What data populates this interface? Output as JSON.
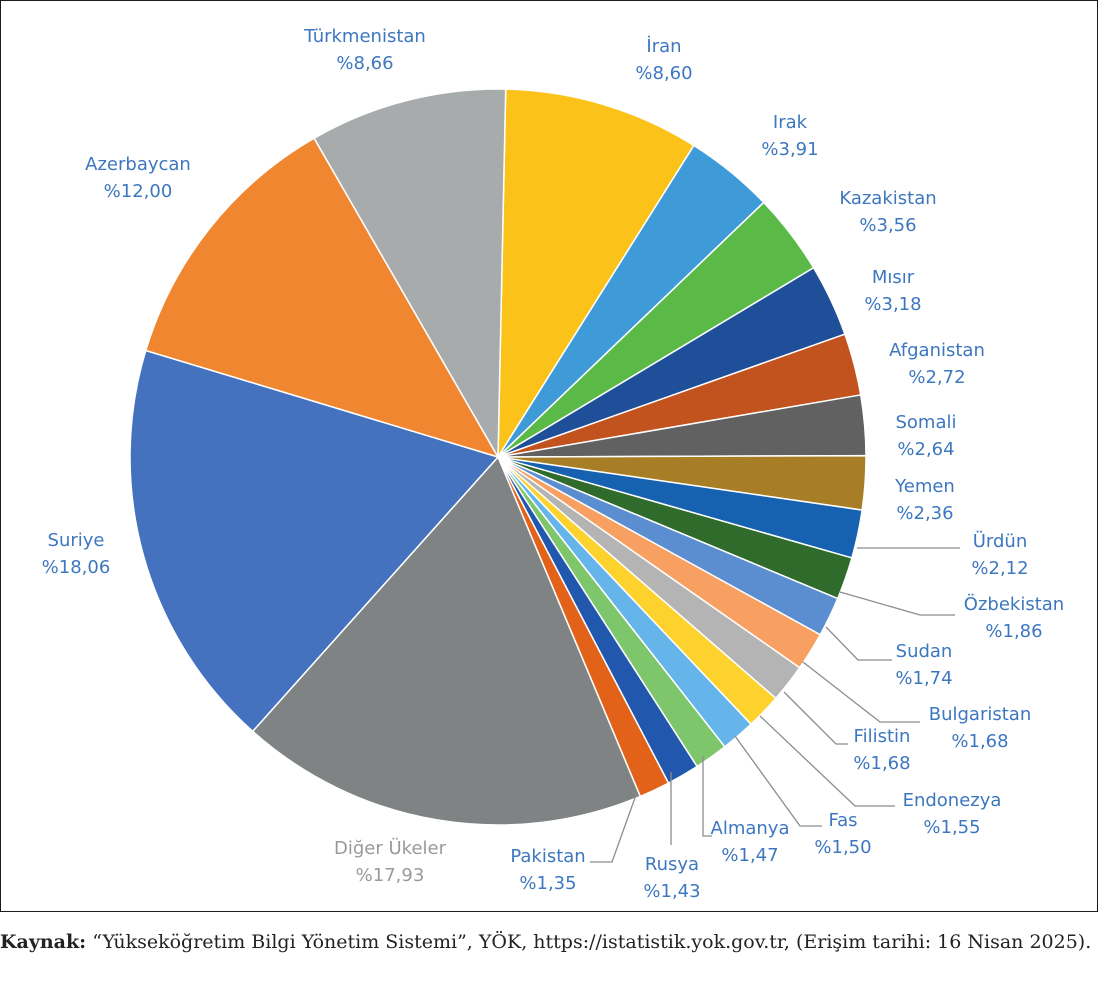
{
  "chart_data": {
    "type": "pie",
    "title": "",
    "slices": [
      {
        "label": "İran",
        "value_text": "%8,60",
        "value": 8.6,
        "color": "#fbc31a"
      },
      {
        "label": "Irak",
        "value_text": "%3,91",
        "value": 3.91,
        "color": "#3f9ad8"
      },
      {
        "label": "Kazakistan",
        "value_text": "%3,56",
        "value": 3.56,
        "color": "#5ab947"
      },
      {
        "label": "Mısır",
        "value_text": "%3,18",
        "value": 3.18,
        "color": "#1f4f99"
      },
      {
        "label": "Afganistan",
        "value_text": "%2,72",
        "value": 2.72,
        "color": "#c2521e"
      },
      {
        "label": "Somali",
        "value_text": "%2,64",
        "value": 2.64,
        "color": "#616161"
      },
      {
        "label": "Yemen",
        "value_text": "%2,36",
        "value": 2.36,
        "color": "#a77e25"
      },
      {
        "label": "Ürdün",
        "value_text": "%2,12",
        "value": 2.12,
        "color": "#1762b0"
      },
      {
        "label": "Özbekistan",
        "value_text": "%1,86",
        "value": 1.86,
        "color": "#2f6b2a"
      },
      {
        "label": "Sudan",
        "value_text": "%1,74",
        "value": 1.74,
        "color": "#5b8ed0"
      },
      {
        "label": "Bulgaristan",
        "value_text": "%1,68",
        "value": 1.68,
        "color": "#f7a062"
      },
      {
        "label": "Filistin",
        "value_text": "%1,68",
        "value": 1.68,
        "color": "#b4b4b4"
      },
      {
        "label": "Endonezya",
        "value_text": "%1,55",
        "value": 1.55,
        "color": "#fdd22c"
      },
      {
        "label": "Fas",
        "value_text": "%1,50",
        "value": 1.5,
        "color": "#65b5ea"
      },
      {
        "label": "Almanya",
        "value_text": "%1,47",
        "value": 1.47,
        "color": "#7ec66b"
      },
      {
        "label": "Rusya",
        "value_text": "%1,43",
        "value": 1.43,
        "color": "#2158ad"
      },
      {
        "label": "Pakistan",
        "value_text": "%1,35",
        "value": 1.35,
        "color": "#e2621a"
      },
      {
        "label": "Diğer Ükeler",
        "value_text": "%17,93",
        "value": 17.93,
        "color": "#7f8384"
      },
      {
        "label": "Suriye",
        "value_text": "%18,06",
        "value": 18.06,
        "color": "#4472bf"
      },
      {
        "label": "Azerbaycan",
        "value_text": "%12,00",
        "value": 12.0,
        "color": "#f08630"
      },
      {
        "label": "Türkmenistan",
        "value_text": "%8,66",
        "value": 8.66,
        "color": "#a8abac"
      }
    ],
    "label_color": "#3d77c0"
  },
  "source": {
    "prefix": "Kaynak:",
    "text": " “Yükseköğretim Bilgi Yönetim Sistemi”, YÖK, https://istatistik.yok.gov.tr, (Erişim tarihi: 16 Nisan 2025)."
  }
}
